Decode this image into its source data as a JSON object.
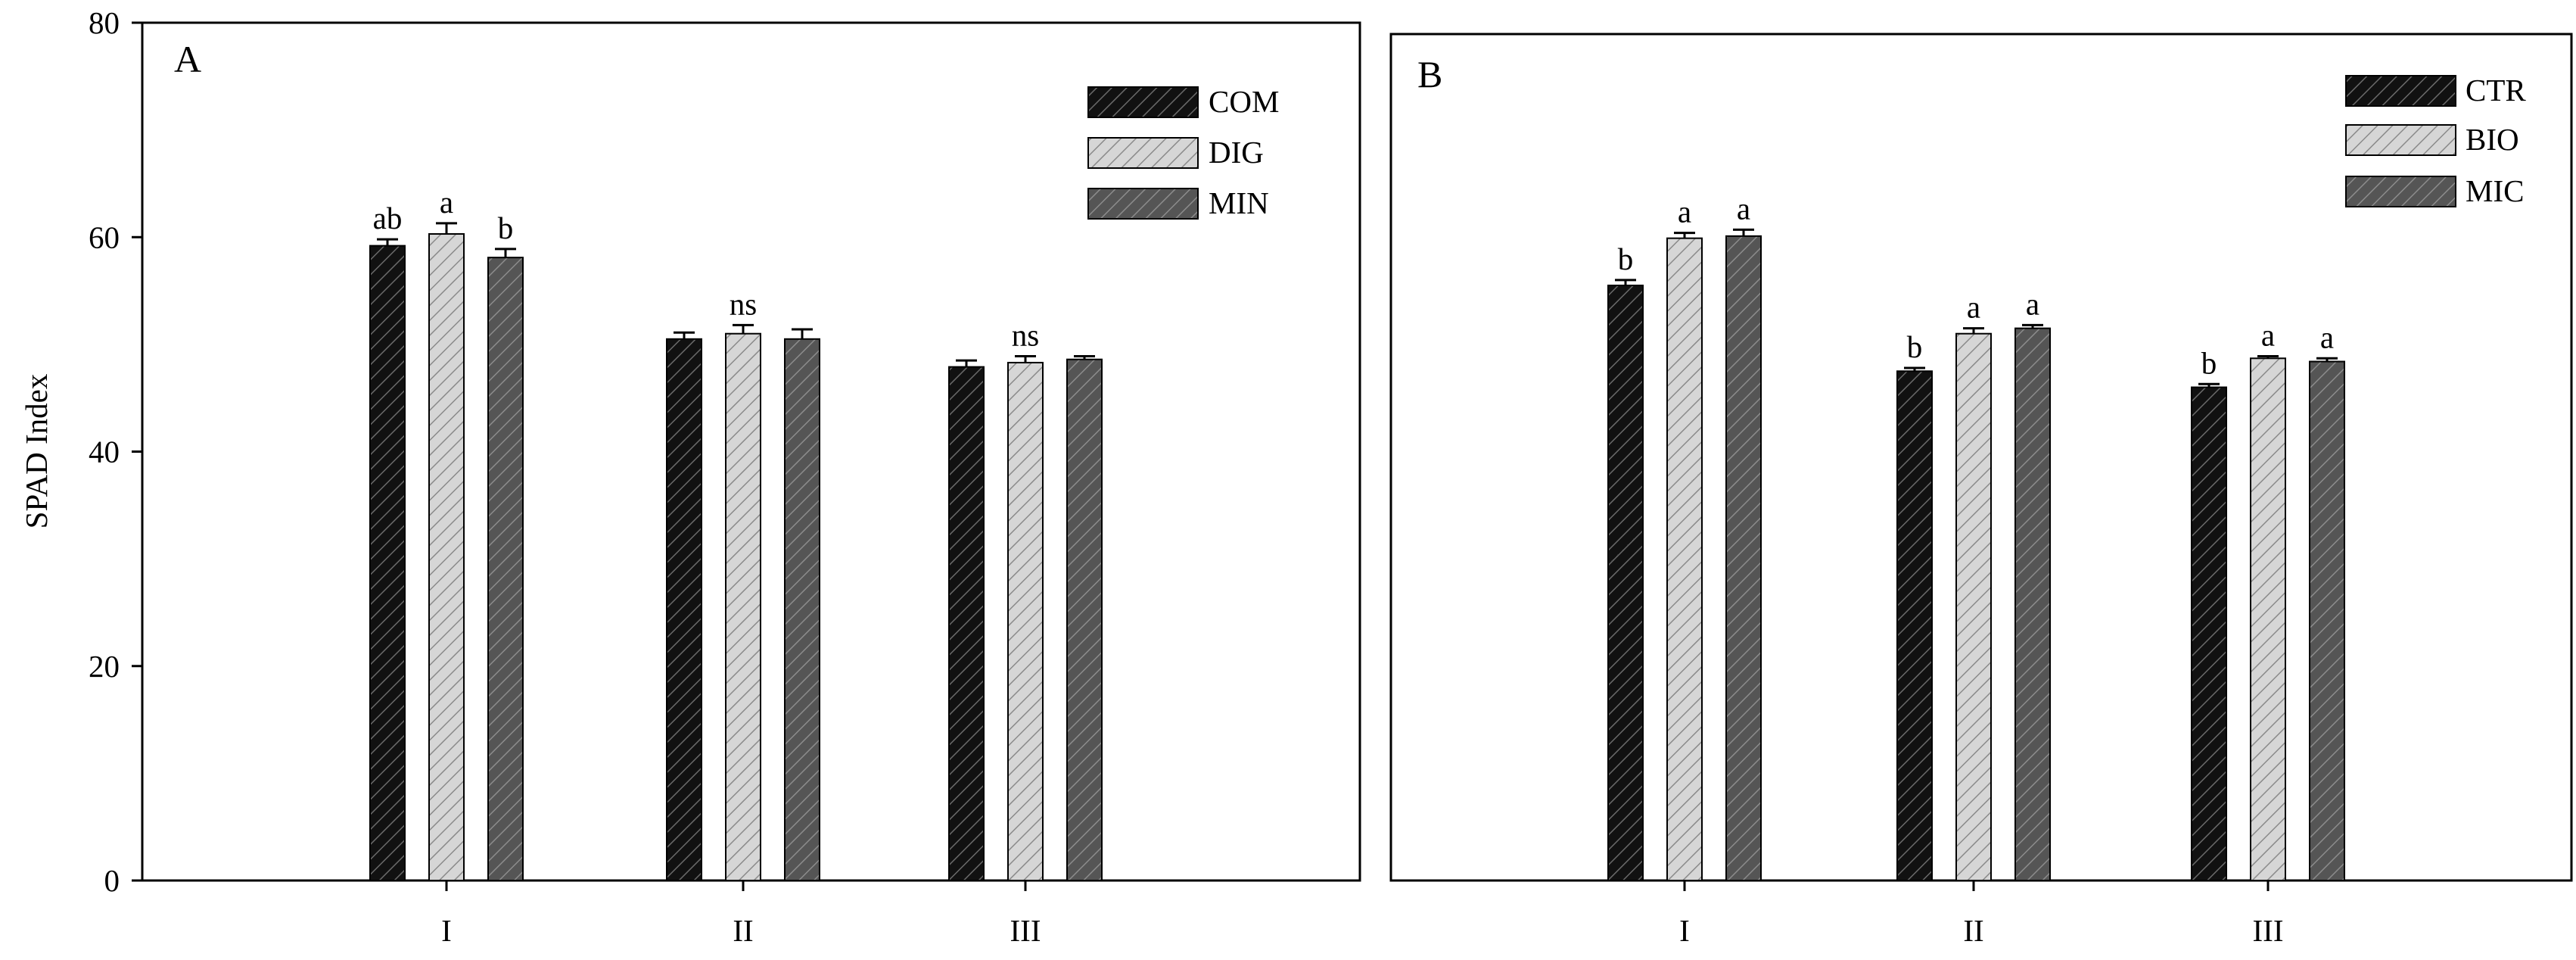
{
  "chart_data": [
    {
      "type": "bar",
      "panel": "A",
      "ylabel": "SPAD Index",
      "ylim": [
        0,
        80
      ],
      "yticks": [
        0,
        20,
        40,
        60,
        80
      ],
      "categories": [
        "I",
        "II",
        "III"
      ],
      "legend_position": "top-right",
      "series": [
        {
          "name": "COM",
          "values": [
            59.2,
            50.5,
            47.9
          ],
          "errors": [
            0.6,
            0.6,
            0.6
          ],
          "color": "#111111",
          "pattern": "dark"
        },
        {
          "name": "DIG",
          "values": [
            60.3,
            51.0,
            48.3
          ],
          "errors": [
            1.0,
            0.8,
            0.6
          ],
          "color": "#c8c8c8",
          "pattern": "light"
        },
        {
          "name": "MIN",
          "values": [
            58.1,
            50.5,
            48.6
          ],
          "errors": [
            0.8,
            0.9,
            0.3
          ],
          "color": "#5a5a5a",
          "pattern": "mid"
        }
      ],
      "significance": [
        {
          "category": "I",
          "labels": [
            "ab",
            "a",
            "b"
          ]
        },
        {
          "category": "II",
          "labels": [
            "",
            "ns",
            ""
          ]
        },
        {
          "category": "III",
          "labels": [
            "",
            "ns",
            ""
          ]
        }
      ]
    },
    {
      "type": "bar",
      "panel": "B",
      "ylabel": "",
      "ylim": [
        0,
        80
      ],
      "yticks": [],
      "categories": [
        "I",
        "II",
        "III"
      ],
      "legend_position": "top-right",
      "series": [
        {
          "name": "CTR",
          "values": [
            55.5,
            47.5,
            46.0
          ],
          "errors": [
            0.5,
            0.3,
            0.3
          ],
          "color": "#111111",
          "pattern": "dark"
        },
        {
          "name": "BIO",
          "values": [
            59.9,
            51.0,
            48.7
          ],
          "errors": [
            0.5,
            0.5,
            0.2
          ],
          "color": "#c8c8c8",
          "pattern": "light"
        },
        {
          "name": "MIC",
          "values": [
            60.1,
            51.5,
            48.4
          ],
          "errors": [
            0.6,
            0.3,
            0.3
          ],
          "color": "#5a5a5a",
          "pattern": "mid"
        }
      ],
      "significance": [
        {
          "category": "I",
          "labels": [
            "b",
            "a",
            "a"
          ]
        },
        {
          "category": "II",
          "labels": [
            "b",
            "a",
            "a"
          ]
        },
        {
          "category": "III",
          "labels": [
            "b",
            "a",
            "a"
          ]
        }
      ]
    }
  ]
}
